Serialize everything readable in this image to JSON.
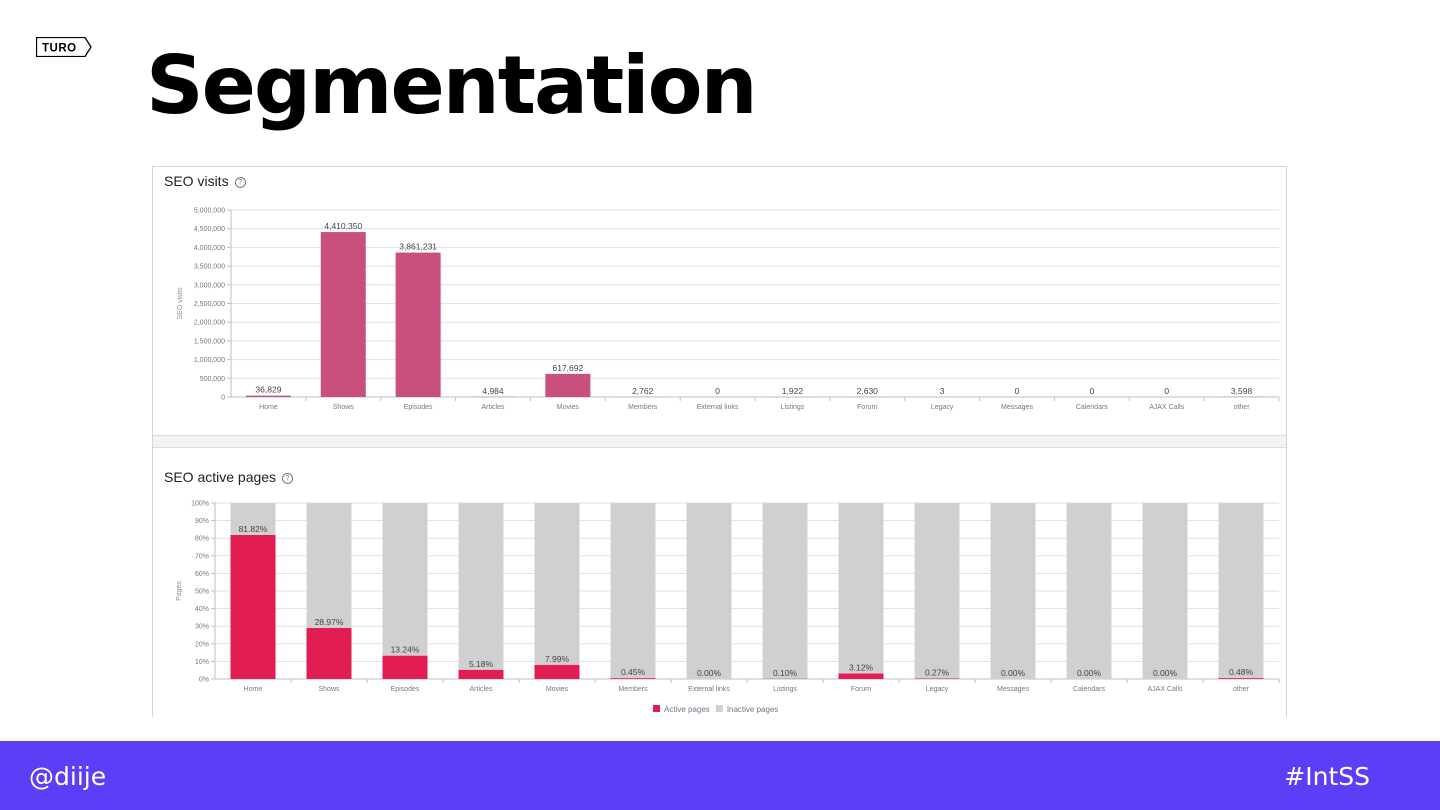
{
  "slide": {
    "title": "Segmentation",
    "logo_text": "TURO",
    "footer_left": "@diije",
    "footer_right": "#IntSS",
    "footer_color": "#5a3ff7"
  },
  "chart_data": [
    {
      "type": "bar",
      "title": "SEO visits",
      "ylabel": "SEO visits",
      "xlabel": "",
      "ylim": [
        0,
        5000000
      ],
      "yticks": [
        "0",
        "500,000",
        "1,000,000",
        "1,500,000",
        "2,000,000",
        "2,500,000",
        "3,000,000",
        "3,500,000",
        "4,000,000",
        "4,500,000",
        "5,000,000"
      ],
      "categories": [
        "Home",
        "Shows",
        "Episodes",
        "Articles",
        "Movies",
        "Members",
        "External links",
        "Listings",
        "Forum",
        "Legacy",
        "Messages",
        "Calendars",
        "AJAX Calls",
        "other"
      ],
      "values": [
        36829,
        4410350,
        3861231,
        4984,
        617692,
        2762,
        0,
        1922,
        2630,
        3,
        0,
        0,
        0,
        3598
      ],
      "value_labels": [
        "36,829",
        "4,410,350",
        "3,861,231",
        "4,984",
        "617,692",
        "2,762",
        "0",
        "1,922",
        "2,630",
        "3",
        "0",
        "0",
        "0",
        "3,598"
      ],
      "color": "#c9507e",
      "grid": true
    },
    {
      "type": "bar",
      "stacked": true,
      "title": "SEO active pages",
      "ylabel": "Pages",
      "xlabel": "",
      "ylim": [
        0,
        100
      ],
      "yticks": [
        "0%",
        "10%",
        "20%",
        "30%",
        "40%",
        "50%",
        "60%",
        "70%",
        "80%",
        "90%",
        "100%"
      ],
      "categories": [
        "Home",
        "Shows",
        "Episodes",
        "Articles",
        "Movies",
        "Members",
        "External links",
        "Listings",
        "Forum",
        "Legacy",
        "Messages",
        "Calendars",
        "AJAX Calls",
        "other"
      ],
      "series": [
        {
          "name": "Active pages",
          "values": [
            81.82,
            28.97,
            13.24,
            5.18,
            7.99,
            0.45,
            0.0,
            0.1,
            3.12,
            0.27,
            0.0,
            0.0,
            0.0,
            0.48
          ],
          "color": "#e21d52"
        },
        {
          "name": "Inactive pages",
          "values": [
            18.18,
            71.03,
            86.76,
            94.82,
            92.01,
            99.55,
            100.0,
            99.9,
            96.88,
            99.73,
            100.0,
            100.0,
            100.0,
            99.52
          ],
          "color": "#d0d0d0"
        }
      ],
      "value_labels": [
        "81.82%",
        "28.97%",
        "13.24%",
        "5.18%",
        "7.99%",
        "0.45%",
        "0.00%",
        "0.10%",
        "3.12%",
        "0.27%",
        "0.00%",
        "0.00%",
        "0.00%",
        "0.48%"
      ],
      "legend": "bottom",
      "grid": true
    }
  ]
}
